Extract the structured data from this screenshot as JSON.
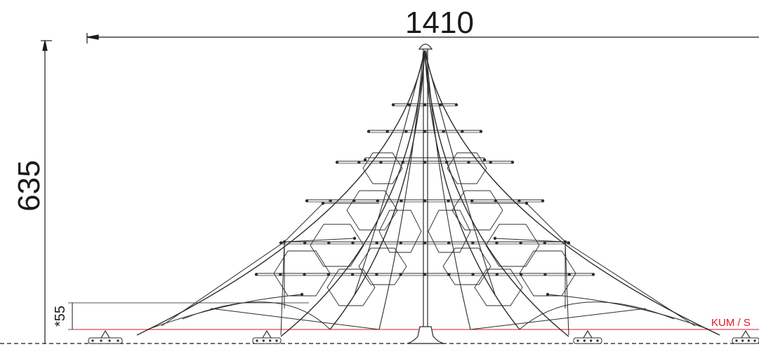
{
  "dimensions": {
    "width_label": "1410",
    "height_label": "635",
    "fall_label": "*55"
  },
  "ground": {
    "label": "KUM / S",
    "color": "#e0191f"
  },
  "colors": {
    "line": "#2b2b2b",
    "dim": "#1a1a1a"
  }
}
